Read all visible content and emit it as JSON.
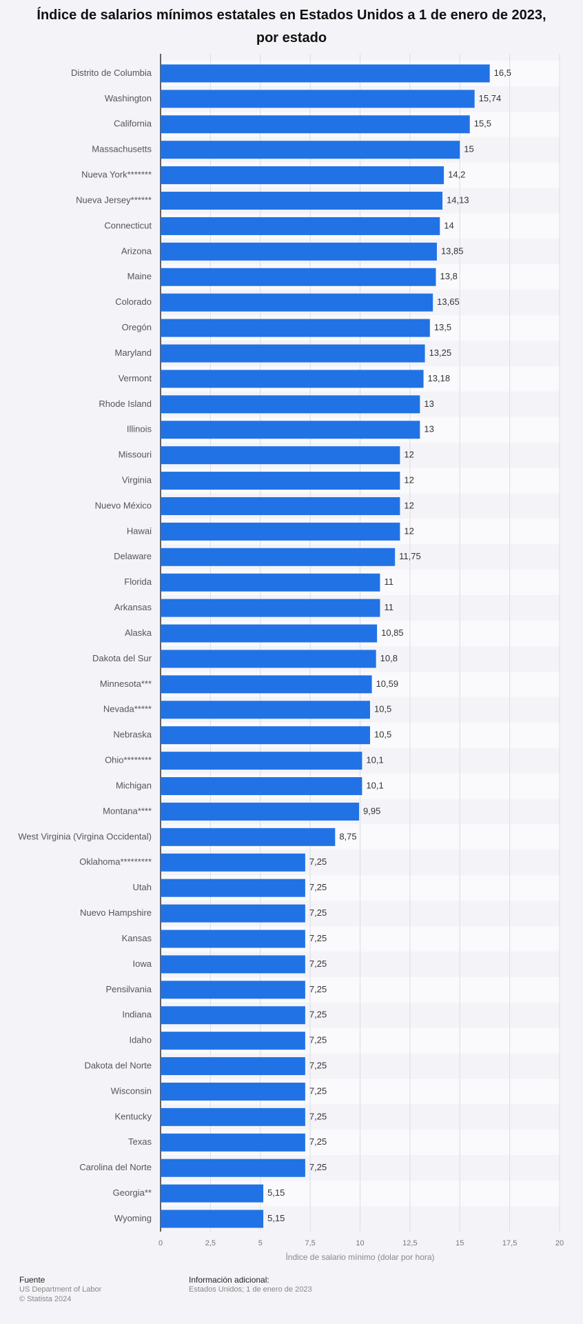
{
  "chart_data": {
    "type": "bar",
    "orientation": "horizontal",
    "title": "Índice de salarios mínimos estatales en Estados Unidos a 1 de enero de 2023, por estado",
    "xlabel": "Índice de salario mínimo (dolar por hora)",
    "categories": [
      "Distrito de Columbia",
      "Washington",
      "California",
      "Massachusetts",
      "Nueva York*******",
      "Nueva Jersey******",
      "Connecticut",
      "Arizona",
      "Maine",
      "Colorado",
      "Oregón",
      "Maryland",
      "Vermont",
      "Rhode Island",
      "Illinois",
      "Missouri",
      "Virginia",
      "Nuevo México",
      "Hawai",
      "Delaware",
      "Florida",
      "Arkansas",
      "Alaska",
      "Dakota del Sur",
      "Minnesota***",
      "Nevada*****",
      "Nebraska",
      "Ohio********",
      "Michigan",
      "Montana****",
      "West Virginia (Virgina Occidental)",
      "Oklahoma*********",
      "Utah",
      "Nuevo Hampshire",
      "Kansas",
      "Iowa",
      "Pensilvania",
      "Indiana",
      "Idaho",
      "Dakota del Norte",
      "Wisconsin",
      "Kentucky",
      "Texas",
      "Carolina del Norte",
      "Georgia**",
      "Wyoming"
    ],
    "values": [
      16.5,
      15.74,
      15.5,
      15,
      14.2,
      14.13,
      14,
      13.85,
      13.8,
      13.65,
      13.5,
      13.25,
      13.18,
      13,
      13,
      12,
      12,
      12,
      12,
      11.75,
      11,
      11,
      10.85,
      10.8,
      10.59,
      10.5,
      10.5,
      10.1,
      10.1,
      9.95,
      8.75,
      7.25,
      7.25,
      7.25,
      7.25,
      7.25,
      7.25,
      7.25,
      7.25,
      7.25,
      7.25,
      7.25,
      7.25,
      7.25,
      5.15,
      5.15
    ],
    "value_labels": [
      "16,5",
      "15,74",
      "15,5",
      "15",
      "14,2",
      "14,13",
      "14",
      "13,85",
      "13,8",
      "13,65",
      "13,5",
      "13,25",
      "13,18",
      "13",
      "13",
      "12",
      "12",
      "12",
      "12",
      "11,75",
      "11",
      "11",
      "10,85",
      "10,8",
      "10,59",
      "10,5",
      "10,5",
      "10,1",
      "10,1",
      "9,95",
      "8,75",
      "7,25",
      "7,25",
      "7,25",
      "7,25",
      "7,25",
      "7,25",
      "7,25",
      "7,25",
      "7,25",
      "7,25",
      "7,25",
      "7,25",
      "7,25",
      "5,15",
      "5,15"
    ],
    "color": "#2172e5",
    "xlim": [
      0,
      20
    ],
    "xticks": [
      0,
      {
        "value": 2.5,
        "label": "2,5"
      },
      5,
      {
        "value": 7.5,
        "label": "7,5"
      },
      10,
      {
        "value": 12.5,
        "label": "12,5"
      },
      15,
      {
        "value": 17.5,
        "label": "17,5"
      },
      20
    ],
    "grid": true
  },
  "footer": {
    "source_heading": "Fuente",
    "source": "US Department of Labor",
    "copyright": "© Statista 2024",
    "info_heading": "Información adicional:",
    "info": "Estados Unidos; 1 de enero de 2023"
  }
}
